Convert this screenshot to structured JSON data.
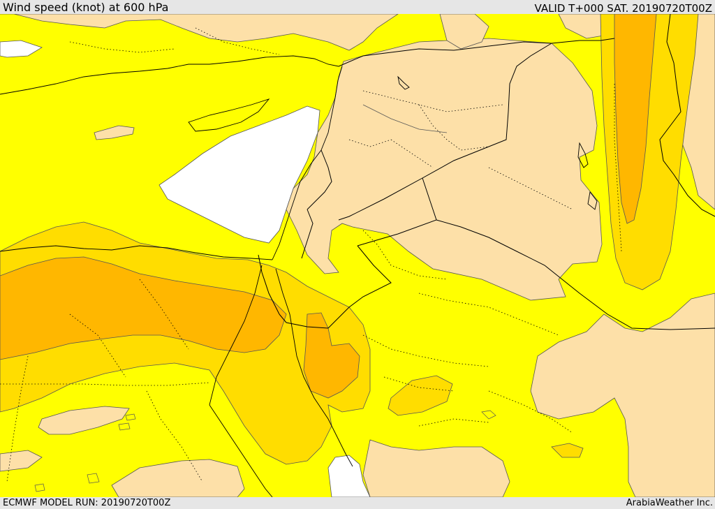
{
  "header": {
    "title": "Wind speed (knot) at 600 hPa",
    "valid": "VALID T+000 SAT. 20190720T00Z"
  },
  "footer": {
    "model_run": "ECMWF MODEL RUN: 20190720T00Z",
    "credit": "ArabiaWeather Inc."
  },
  "map": {
    "field": "wind speed",
    "unit": "knot",
    "level": "600 hPa",
    "shading_colors": [
      "#ffffff",
      "#fde0a8",
      "#ffff00",
      "#ffdd00",
      "#ffb700"
    ],
    "border_color": "#000000",
    "province_line_style": "dotted",
    "contour_color": "#555555"
  }
}
